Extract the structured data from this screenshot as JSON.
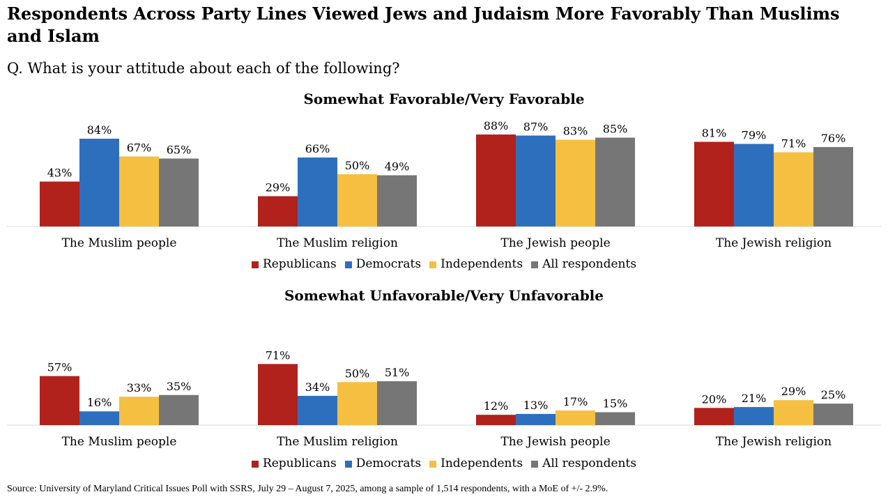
{
  "title": "Respondents Across Party Lines Viewed Jews and Judaism More Favorably Than Muslims and Islam",
  "question": "Q. What is your attitude about each of the following?",
  "source": "Source: University of Maryland Critical Issues Poll with SSRS, July 29 – August 7, 2025, among a sample of 1,514 respondents, with a MoE of +/- 2.9%.",
  "colors": {
    "Republicans": "#b0221b",
    "Democrats": "#2e6fbd",
    "Independents": "#f5bf42",
    "All respondents": "#767676"
  },
  "legend": [
    "Republicans",
    "Democrats",
    "Independents",
    "All respondents"
  ],
  "chart_data": [
    {
      "type": "bar",
      "title": "Somewhat Favorable/Very Favorable",
      "categories": [
        "The Muslim people",
        "The Muslim religion",
        "The Jewish people",
        "The Jewish religion"
      ],
      "series": [
        {
          "name": "Republicans",
          "values": [
            43,
            29,
            88,
            81
          ]
        },
        {
          "name": "Democrats",
          "values": [
            84,
            66,
            87,
            79
          ]
        },
        {
          "name": "Independents",
          "values": [
            67,
            50,
            83,
            71
          ]
        },
        {
          "name": "All respondents",
          "values": [
            65,
            49,
            85,
            76
          ]
        }
      ],
      "value_suffix": "%",
      "ylim": [
        0,
        100
      ]
    },
    {
      "type": "bar",
      "title": "Somewhat Unfavorable/Very Unfavorable",
      "categories": [
        "The Muslim people",
        "The Muslim religion",
        "The Jewish people",
        "The Jewish religion"
      ],
      "series": [
        {
          "name": "Republicans",
          "values": [
            57,
            71,
            12,
            20
          ]
        },
        {
          "name": "Democrats",
          "values": [
            16,
            34,
            13,
            21
          ]
        },
        {
          "name": "Independents",
          "values": [
            33,
            50,
            17,
            29
          ]
        },
        {
          "name": "All respondents",
          "values": [
            35,
            51,
            15,
            25
          ]
        }
      ],
      "value_suffix": "%",
      "ylim": [
        0,
        100
      ]
    }
  ]
}
